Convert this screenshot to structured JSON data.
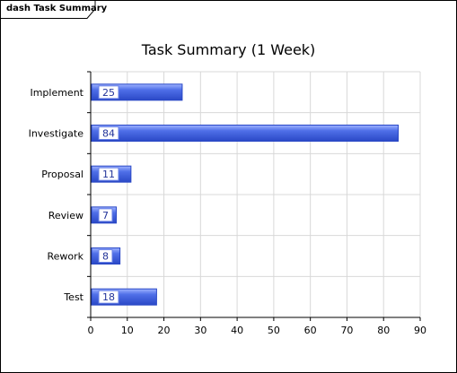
{
  "frame": {
    "title": "dash Task Summary"
  },
  "colors": {
    "bar": "#4f6fe8",
    "bar_highlight": "#9fb3ff",
    "bar_dark": "#2a48c6",
    "grid": "#d8d8d8",
    "label_box_border": "#6a82e6"
  },
  "chart_data": {
    "type": "bar",
    "orientation": "horizontal",
    "title": "Task Summary (1 Week)",
    "categories": [
      "Implement",
      "Investigate",
      "Proposal",
      "Review",
      "Rework",
      "Test"
    ],
    "values": [
      25,
      84,
      11,
      7,
      8,
      18
    ],
    "xlim": [
      0,
      90
    ],
    "xticks": [
      0,
      10,
      20,
      30,
      40,
      50,
      60,
      70,
      80,
      90
    ],
    "xlabel": "",
    "ylabel": "",
    "grid": true,
    "data_labels": true
  }
}
